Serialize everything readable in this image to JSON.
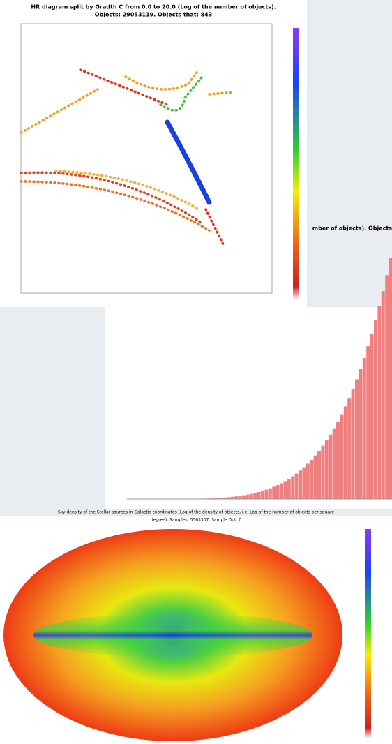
{
  "hr_panel": {
    "title": "HR diagram split by Gradth C from 0.0 to 20.0 (Log of the number of objects).",
    "subtitle": "Objects: 29053119. Objects that: 843"
  },
  "histogram_panel": {
    "clipped_title": "mber of objects). Objects"
  },
  "sky_panel": {
    "title": "Sky density of the Stellar sources in Galactic coordinates (Log of the density of objects, i.e. Log of the number of objects per square",
    "subtitle": "degree). Samples: 5563337. Sample Out: 0"
  }
}
